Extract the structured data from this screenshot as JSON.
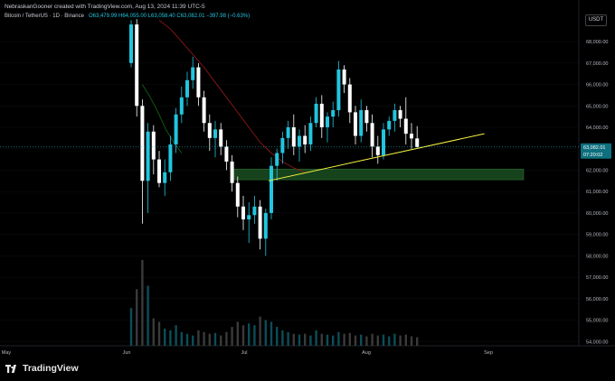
{
  "header": {
    "attribution": "NebraskanGooner created with TradingView.com, Aug 13, 2024 11:39 UTC-5"
  },
  "legend": {
    "symbol": "Bitcoin / TetherUS · 1D · Binance",
    "open": "O63,479.99",
    "high": "H64,055.00",
    "low": "L63,058.40",
    "close": "C63,082.01",
    "change": "−397.98 (−0.63%)"
  },
  "currency_button": "USDT",
  "current_price": {
    "price": "63,082.01",
    "countdown": "07:20:02"
  },
  "brand": "TradingView",
  "colors": {
    "up": "#22c5de",
    "down": "#ffffff",
    "trendline": "#f5f542",
    "support_zone": "#17431c",
    "ma_red": "#8c1717",
    "ma_green": "#146014"
  },
  "chart_data": {
    "type": "candlestick",
    "interval": "1D",
    "ylim": [
      53800,
      69100
    ],
    "y_ticks": [
      "54,000.00",
      "55,000.00",
      "56,000.00",
      "57,000.00",
      "58,000.00",
      "59,000.00",
      "60,000.00",
      "61,000.00",
      "62,000.00",
      "63,000.00",
      "64,000.00",
      "65,000.00",
      "66,000.00",
      "67,000.00",
      "68,000.00"
    ],
    "x_ticks": [
      "May",
      "Jun",
      "Jul",
      "Aug",
      "Sep"
    ],
    "candles": [
      {
        "o": 67000,
        "h": 69000,
        "l": 66800,
        "c": 68800
      },
      {
        "o": 68800,
        "h": 69050,
        "l": 64500,
        "c": 65000
      },
      {
        "o": 65000,
        "h": 65300,
        "l": 59500,
        "c": 61500
      },
      {
        "o": 61500,
        "h": 64200,
        "l": 60000,
        "c": 63800
      },
      {
        "o": 63800,
        "h": 64100,
        "l": 61800,
        "c": 62500
      },
      {
        "o": 62500,
        "h": 62900,
        "l": 61200,
        "c": 61400
      },
      {
        "o": 61400,
        "h": 62500,
        "l": 60800,
        "c": 61900
      },
      {
        "o": 61900,
        "h": 63600,
        "l": 61500,
        "c": 63200
      },
      {
        "o": 63200,
        "h": 64900,
        "l": 62800,
        "c": 64600
      },
      {
        "o": 64600,
        "h": 65900,
        "l": 64200,
        "c": 65400
      },
      {
        "o": 65400,
        "h": 66600,
        "l": 65000,
        "c": 66200
      },
      {
        "o": 66200,
        "h": 67300,
        "l": 65800,
        "c": 66800
      },
      {
        "o": 66800,
        "h": 67000,
        "l": 65000,
        "c": 65400
      },
      {
        "o": 65400,
        "h": 65700,
        "l": 63800,
        "c": 64200
      },
      {
        "o": 64200,
        "h": 64600,
        "l": 62900,
        "c": 63500
      },
      {
        "o": 63500,
        "h": 64300,
        "l": 62600,
        "c": 63900
      },
      {
        "o": 63900,
        "h": 64200,
        "l": 62700,
        "c": 63100
      },
      {
        "o": 63100,
        "h": 63400,
        "l": 62000,
        "c": 62400
      },
      {
        "o": 62400,
        "h": 62700,
        "l": 61000,
        "c": 61400
      },
      {
        "o": 61400,
        "h": 61700,
        "l": 59800,
        "c": 60300
      },
      {
        "o": 60300,
        "h": 60800,
        "l": 59200,
        "c": 59700
      },
      {
        "o": 59700,
        "h": 60500,
        "l": 58600,
        "c": 59900
      },
      {
        "o": 59900,
        "h": 60800,
        "l": 59500,
        "c": 60300
      },
      {
        "o": 60300,
        "h": 60600,
        "l": 58300,
        "c": 58800
      },
      {
        "o": 58800,
        "h": 60200,
        "l": 58000,
        "c": 60000
      },
      {
        "o": 60000,
        "h": 62600,
        "l": 59700,
        "c": 62200
      },
      {
        "o": 62200,
        "h": 63000,
        "l": 61500,
        "c": 62800
      },
      {
        "o": 62800,
        "h": 63800,
        "l": 62300,
        "c": 63500
      },
      {
        "o": 63500,
        "h": 64300,
        "l": 63000,
        "c": 64000
      },
      {
        "o": 64000,
        "h": 64600,
        "l": 62700,
        "c": 63100
      },
      {
        "o": 63100,
        "h": 63900,
        "l": 62400,
        "c": 63600
      },
      {
        "o": 63600,
        "h": 64100,
        "l": 62800,
        "c": 63200
      },
      {
        "o": 63200,
        "h": 64500,
        "l": 62900,
        "c": 64200
      },
      {
        "o": 64200,
        "h": 65400,
        "l": 64000,
        "c": 65100
      },
      {
        "o": 65100,
        "h": 65500,
        "l": 63500,
        "c": 64000
      },
      {
        "o": 64000,
        "h": 64700,
        "l": 63300,
        "c": 64500
      },
      {
        "o": 64500,
        "h": 65200,
        "l": 64000,
        "c": 64800
      },
      {
        "o": 64800,
        "h": 67100,
        "l": 64500,
        "c": 66700
      },
      {
        "o": 66700,
        "h": 66900,
        "l": 65600,
        "c": 66000
      },
      {
        "o": 66000,
        "h": 66300,
        "l": 64200,
        "c": 64700
      },
      {
        "o": 64700,
        "h": 65000,
        "l": 63200,
        "c": 63600
      },
      {
        "o": 63600,
        "h": 65300,
        "l": 63300,
        "c": 64800
      },
      {
        "o": 64800,
        "h": 65000,
        "l": 63800,
        "c": 64200
      },
      {
        "o": 64200,
        "h": 64600,
        "l": 62600,
        "c": 63100
      },
      {
        "o": 63100,
        "h": 63600,
        "l": 62300,
        "c": 62700
      },
      {
        "o": 62700,
        "h": 64200,
        "l": 62500,
        "c": 63900
      },
      {
        "o": 63900,
        "h": 64500,
        "l": 63600,
        "c": 64300
      },
      {
        "o": 64300,
        "h": 65100,
        "l": 63800,
        "c": 64800
      },
      {
        "o": 64800,
        "h": 65000,
        "l": 64000,
        "c": 64400
      },
      {
        "o": 64400,
        "h": 65400,
        "l": 63200,
        "c": 63700
      },
      {
        "o": 63700,
        "h": 64200,
        "l": 63000,
        "c": 63480
      },
      {
        "o": 63480,
        "h": 64055,
        "l": 63058,
        "c": 63082
      }
    ],
    "volume": [
      22000,
      33000,
      50000,
      35000,
      16000,
      14000,
      10000,
      9000,
      12000,
      8000,
      7000,
      6000,
      9000,
      8000,
      7000,
      7500,
      6000,
      8000,
      11000,
      14000,
      12000,
      13000,
      12000,
      17000,
      15000,
      14000,
      11000,
      9000,
      8000,
      7000,
      6500,
      7000,
      6000,
      9000,
      7000,
      6500,
      6000,
      8000,
      7000,
      7500,
      6000,
      6500,
      5500,
      7000,
      6000,
      6500,
      5500,
      7000,
      6000,
      6500,
      5500,
      5000
    ],
    "support_zone": {
      "y1": 61550,
      "y2": 62050
    },
    "trendline": {
      "x1": 24.5,
      "y1": 61500,
      "x2": 63,
      "y2": 63700
    },
    "ma_red": [
      69000,
      68600,
      68000,
      67400,
      66800,
      66100,
      65400,
      64700,
      64000,
      63300,
      62800,
      62400,
      62100,
      61900
    ],
    "ma_green": [
      66000,
      65400,
      64700,
      63900,
      63300,
      62800
    ]
  }
}
